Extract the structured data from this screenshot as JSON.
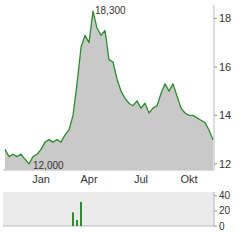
{
  "chart_data": [
    {
      "type": "area",
      "categories": [
        null,
        null,
        null,
        null,
        null,
        null,
        null,
        null,
        null,
        "Jan",
        null,
        null,
        null,
        null,
        null,
        null,
        null,
        null,
        null,
        null,
        null,
        "Apr",
        null,
        null,
        null,
        null,
        null,
        null,
        null,
        null,
        null,
        null,
        null,
        null,
        "Jul",
        null,
        null,
        null,
        null,
        null,
        null,
        null,
        null,
        null,
        null,
        null,
        "Okt",
        null,
        null,
        null,
        null,
        null,
        null
      ],
      "values": [
        12.6,
        12.3,
        12.4,
        12.3,
        12.4,
        12.2,
        12.0,
        12.3,
        12.4,
        12.6,
        12.9,
        13.0,
        12.9,
        13.0,
        12.9,
        13.2,
        13.4,
        14.0,
        15.3,
        16.8,
        17.3,
        17.0,
        18.3,
        17.6,
        17.3,
        17.5,
        16.3,
        16.2,
        15.5,
        15.0,
        14.7,
        14.5,
        14.4,
        14.6,
        14.3,
        14.5,
        14.1,
        14.3,
        14.4,
        14.9,
        15.3,
        15.0,
        15.3,
        14.8,
        14.3,
        14.1,
        14.0,
        14.0,
        13.9,
        13.8,
        13.7,
        13.4,
        13.0
      ],
      "color": "#2e8b2e",
      "ylim": [
        11.75,
        18.55
      ],
      "yticks": [
        12,
        14,
        16,
        18
      ],
      "grid": false,
      "annotations": [
        {
          "text": "18,300",
          "value": 18.3
        },
        {
          "text": "12,000",
          "value": 12.0
        }
      ]
    },
    {
      "type": "bar",
      "categories": [
        null,
        null,
        null,
        null,
        null,
        null,
        null,
        null,
        null,
        null,
        null,
        null,
        null,
        null,
        null,
        null,
        null,
        null,
        null,
        null,
        null,
        null,
        null,
        null,
        null,
        null,
        null,
        null,
        null,
        null,
        null,
        null,
        null,
        null,
        null,
        null,
        null,
        null,
        null,
        null,
        null,
        null,
        null,
        null,
        null,
        null,
        null,
        null,
        null,
        null,
        null,
        null,
        null
      ],
      "values": [
        0,
        0,
        0,
        0,
        0,
        0,
        0,
        0,
        0,
        0,
        0,
        0,
        0,
        0,
        0,
        0,
        0,
        18,
        8,
        32,
        0,
        0,
        0,
        0,
        0,
        0,
        0,
        0,
        0,
        0,
        0,
        0,
        0,
        0,
        0,
        0,
        0,
        0,
        0,
        0,
        0,
        0,
        0,
        0,
        0,
        0,
        0,
        0,
        0,
        0,
        0,
        0,
        0
      ],
      "color": "#2e8b2e",
      "ylim": [
        0,
        45
      ],
      "yticks": [
        0,
        20,
        40
      ],
      "tick_labels": "y"
    }
  ]
}
